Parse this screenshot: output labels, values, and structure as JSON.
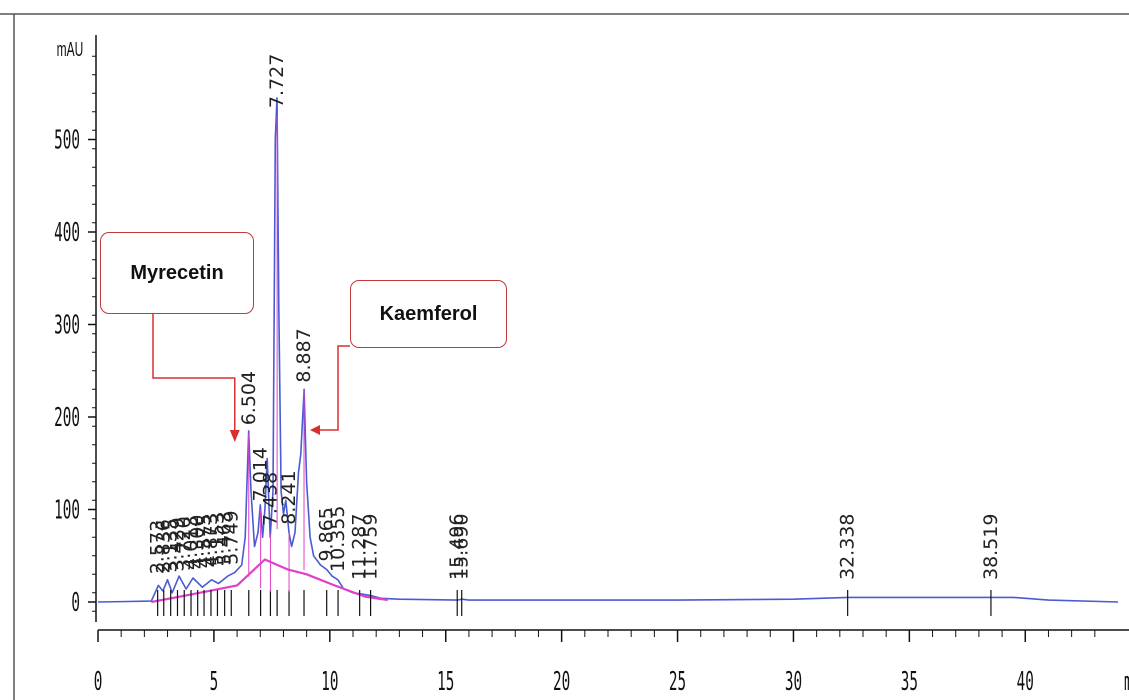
{
  "chart_data": {
    "type": "line",
    "ylabel": "mAU",
    "xlabel": "mi",
    "xlim": [
      0,
      44
    ],
    "ylim": [
      -20,
      600
    ],
    "x_ticks": [
      0,
      5,
      10,
      15,
      20,
      25,
      30,
      35,
      40
    ],
    "y_ticks": [
      0,
      100,
      200,
      300,
      400,
      500
    ],
    "grid": false,
    "series": [
      {
        "color": "#4a5bd4",
        "x": [
          0,
          2.3,
          2.6,
          2.8,
          3.0,
          3.2,
          3.5,
          3.8,
          4.1,
          4.5,
          4.9,
          5.2,
          5.6,
          5.9,
          6.2,
          6.35,
          6.5,
          6.6,
          6.75,
          6.9,
          7.0,
          7.1,
          7.2,
          7.3,
          7.43,
          7.55,
          7.65,
          7.72,
          7.8,
          7.9,
          8.0,
          8.1,
          8.24,
          8.35,
          8.5,
          8.65,
          8.75,
          8.89,
          9.0,
          9.15,
          9.3,
          9.6,
          9.87,
          10.1,
          10.35,
          10.6,
          11.0,
          11.29,
          11.76,
          12.2,
          13.0,
          15.5,
          15.7,
          16.0,
          20.0,
          25.0,
          30.0,
          32.34,
          33.0,
          38.52,
          39.5,
          41.0,
          44.0
        ],
        "y": [
          0,
          1,
          18,
          12,
          24,
          10,
          28,
          14,
          26,
          16,
          24,
          20,
          28,
          32,
          40,
          70,
          185,
          120,
          60,
          75,
          105,
          70,
          100,
          155,
          70,
          120,
          500,
          545,
          320,
          120,
          95,
          110,
          75,
          60,
          75,
          140,
          160,
          230,
          130,
          70,
          50,
          40,
          35,
          28,
          24,
          14,
          10,
          9,
          7,
          4,
          3,
          2,
          3,
          2,
          2,
          2,
          3,
          5,
          5,
          5,
          5,
          2,
          0
        ]
      },
      {
        "color": "#e040c8",
        "x": [
          2.3,
          4.0,
          6.0,
          7.2,
          8.2,
          9.0,
          10.2,
          11.5,
          12.5
        ],
        "y": [
          0,
          8,
          18,
          46,
          35,
          30,
          18,
          6,
          2
        ]
      }
    ],
    "peaks": [
      {
        "label": "2.573",
        "x": 2.573
      },
      {
        "label": "2.836",
        "x": 2.836
      },
      {
        "label": "3.135",
        "x": 3.135
      },
      {
        "label": "3.429",
        "x": 3.429
      },
      {
        "label": "3.720",
        "x": 3.72
      },
      {
        "label": "4.013",
        "x": 4.013
      },
      {
        "label": "4.300",
        "x": 4.3
      },
      {
        "label": "4.575",
        "x": 4.575
      },
      {
        "label": "4.873",
        "x": 4.873
      },
      {
        "label": "5.153",
        "x": 5.153
      },
      {
        "label": "5.463",
        "x": 5.463
      },
      {
        "label": "5.749",
        "x": 5.749
      },
      {
        "label": "6.504",
        "x": 6.504
      },
      {
        "label": "7.014",
        "x": 7.014
      },
      {
        "label": "7.438",
        "x": 7.438
      },
      {
        "label": "7.727",
        "x": 7.727
      },
      {
        "label": "8.241",
        "x": 8.241
      },
      {
        "label": "8.887",
        "x": 8.887
      },
      {
        "label": "9.865",
        "x": 9.865
      },
      {
        "label": "10.355",
        "x": 10.355
      },
      {
        "label": "11.287",
        "x": 11.287
      },
      {
        "label": "11.759",
        "x": 11.759
      },
      {
        "label": "15.496",
        "x": 15.496
      },
      {
        "label": "15.690",
        "x": 15.69
      },
      {
        "label": "32.338",
        "x": 32.338
      },
      {
        "label": "38.519",
        "x": 38.519
      }
    ],
    "annotations": [
      {
        "text": "Myrecetin",
        "target_x": 6.504
      },
      {
        "text": "Kaemferol",
        "target_x": 8.887
      }
    ]
  }
}
